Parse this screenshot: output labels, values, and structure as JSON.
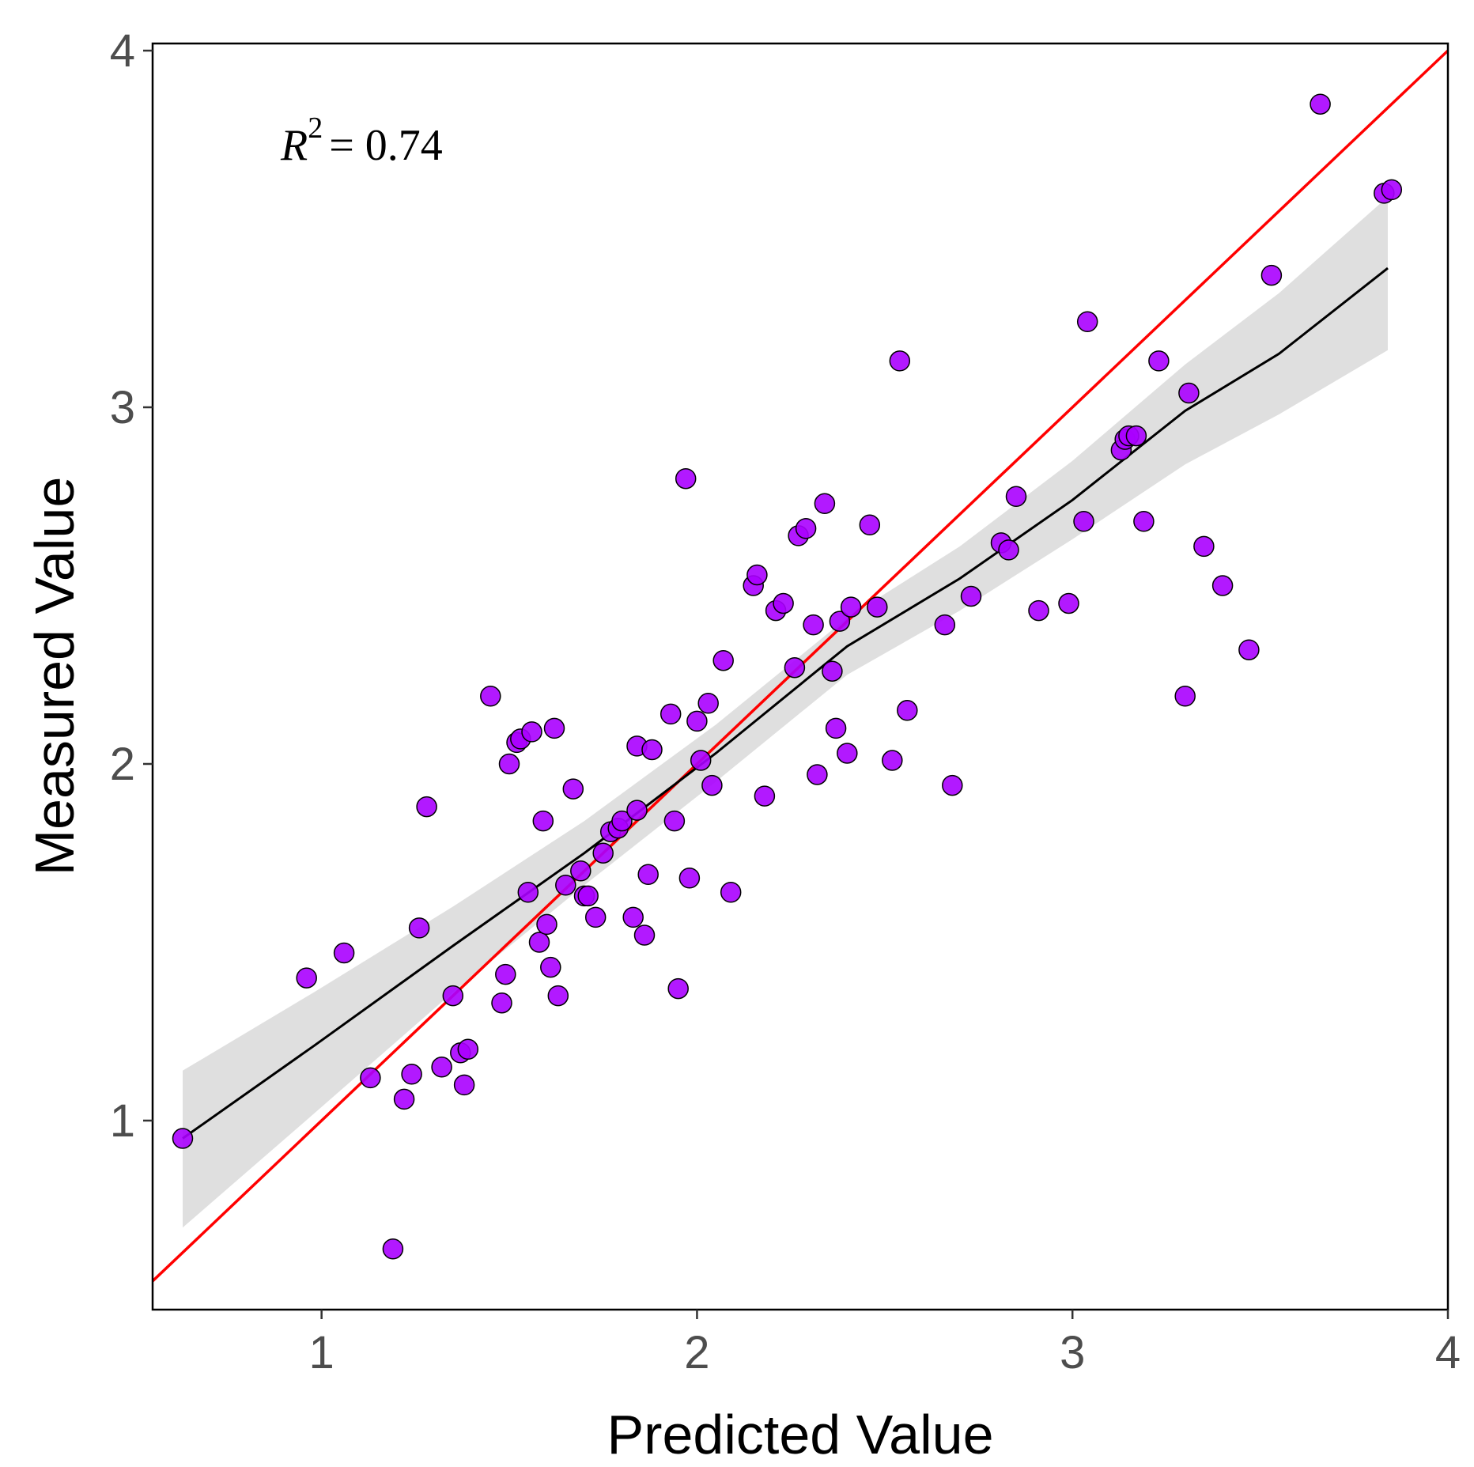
{
  "chart_data": {
    "type": "scatter",
    "title": "",
    "xlabel": "Predicted Value",
    "ylabel": "Measured Value",
    "xlim": [
      0.55,
      4.0
    ],
    "ylim": [
      0.47,
      4.02
    ],
    "xticks": [
      "1",
      "2",
      "3",
      "4"
    ],
    "yticks": [
      "1",
      "2",
      "3",
      "4"
    ],
    "grid": false,
    "annotation": {
      "lhs": "R",
      "exp": "2",
      "rhs": "= 0.74"
    },
    "colors": {
      "points": "#aa00ff",
      "identity_line": "#ff0000",
      "fit_line": "#000000",
      "band": "#d9d9d9"
    },
    "identity_line": {
      "slope": 1,
      "intercept": 0
    },
    "fit_curve": {
      "x": [
        0.63,
        0.98,
        1.35,
        1.7,
        2.05,
        2.4,
        2.7,
        3.0,
        3.3,
        3.55,
        3.84
      ],
      "y": [
        0.95,
        1.21,
        1.49,
        1.75,
        2.03,
        2.33,
        2.52,
        2.74,
        2.99,
        3.15,
        3.39
      ],
      "lower": [
        0.7,
        1.02,
        1.36,
        1.66,
        1.95,
        2.25,
        2.43,
        2.63,
        2.84,
        2.98,
        3.16
      ],
      "upper": [
        1.14,
        1.36,
        1.6,
        1.84,
        2.11,
        2.41,
        2.61,
        2.85,
        3.12,
        3.32,
        3.59
      ]
    },
    "points": {
      "x": [
        0.63,
        0.96,
        1.06,
        1.13,
        1.19,
        1.22,
        1.24,
        1.26,
        1.28,
        1.32,
        1.35,
        1.37,
        1.38,
        1.39,
        1.45,
        1.48,
        1.49,
        1.5,
        1.52,
        1.53,
        1.55,
        1.56,
        1.58,
        1.59,
        1.6,
        1.61,
        1.62,
        1.63,
        1.65,
        1.67,
        1.69,
        1.7,
        1.71,
        1.73,
        1.75,
        1.77,
        1.79,
        1.8,
        1.83,
        1.84,
        1.84,
        1.86,
        1.87,
        1.88,
        1.93,
        1.94,
        1.95,
        1.97,
        1.98,
        2.0,
        2.01,
        2.03,
        2.04,
        2.07,
        2.09,
        2.15,
        2.16,
        2.18,
        2.21,
        2.23,
        2.26,
        2.27,
        2.29,
        2.31,
        2.32,
        2.34,
        2.36,
        2.37,
        2.38,
        2.4,
        2.41,
        2.46,
        2.48,
        2.52,
        2.54,
        2.56,
        2.66,
        2.68,
        2.73,
        2.81,
        2.83,
        2.85,
        2.91,
        2.99,
        3.03,
        3.04,
        3.13,
        3.14,
        3.15,
        3.17,
        3.19,
        3.23,
        3.3,
        3.31,
        3.35,
        3.4,
        3.47,
        3.53,
        3.66,
        3.83,
        3.85
      ],
      "y": [
        0.95,
        1.4,
        1.47,
        1.12,
        0.64,
        1.06,
        1.13,
        1.54,
        1.88,
        1.15,
        1.35,
        1.19,
        1.1,
        1.2,
        2.19,
        1.33,
        1.41,
        2.0,
        2.06,
        2.07,
        1.64,
        2.09,
        1.5,
        1.84,
        1.55,
        1.43,
        2.1,
        1.35,
        1.66,
        1.93,
        1.7,
        1.63,
        1.63,
        1.57,
        1.75,
        1.81,
        1.82,
        1.84,
        1.57,
        2.05,
        1.87,
        1.52,
        1.69,
        2.04,
        2.14,
        1.84,
        1.37,
        2.8,
        1.68,
        2.12,
        2.01,
        2.17,
        1.94,
        2.29,
        1.64,
        2.5,
        2.53,
        1.91,
        2.43,
        2.45,
        2.27,
        2.64,
        2.66,
        2.39,
        1.97,
        2.73,
        2.26,
        2.1,
        2.4,
        2.03,
        2.44,
        2.67,
        2.44,
        2.01,
        3.13,
        2.15,
        2.39,
        1.94,
        2.47,
        2.62,
        2.6,
        2.75,
        2.43,
        2.45,
        2.68,
        3.24,
        2.88,
        2.91,
        2.92,
        2.92,
        2.68,
        3.13,
        2.19,
        3.04,
        2.61,
        2.5,
        2.32,
        3.37,
        3.85,
        3.6,
        3.61
      ]
    }
  }
}
